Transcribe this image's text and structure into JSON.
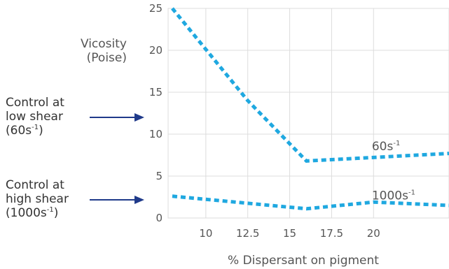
{
  "chart_data": {
    "type": "line",
    "xlabel": "% Dispersant on pigment",
    "ylabel": [
      "Vicosity",
      "(Poise)"
    ],
    "xlim": [
      7.75,
      24.5
    ],
    "ylim": [
      0,
      25
    ],
    "x_ticks": [
      10,
      12.5,
      15,
      17.5,
      20
    ],
    "x_tick_labels": [
      "10",
      "12.5",
      "15",
      "17.5",
      "20"
    ],
    "y_ticks": [
      0,
      5,
      10,
      15,
      20,
      25
    ],
    "y_tick_labels": [
      "0",
      "5",
      "10",
      "15",
      "20",
      "25"
    ],
    "grid": true,
    "series": [
      {
        "name": "60s-1",
        "label_base": "60s",
        "label_sup": "-1",
        "x": [
          8,
          12.5,
          16,
          24.5
        ],
        "y": [
          25,
          14,
          6.8,
          7.7
        ]
      },
      {
        "name": "1000s-1",
        "label_base": "1000s",
        "label_sup": "-1",
        "x": [
          8,
          16,
          20,
          24.5
        ],
        "y": [
          2.6,
          1.1,
          1.9,
          1.5
        ]
      }
    ],
    "annotations": [
      {
        "lines": [
          "Control at",
          "low shear",
          "(60s",
          "-1",
          ")"
        ],
        "points_to_y": 10
      },
      {
        "lines": [
          "Control at",
          "high shear",
          "(1000s",
          "-1",
          ")"
        ],
        "points_to_y": 1.5
      }
    ],
    "colors": {
      "series": "#1fa8e0",
      "arrow": "#1f3a8a",
      "grid": "#dcdcdc",
      "text": "#555555"
    }
  }
}
